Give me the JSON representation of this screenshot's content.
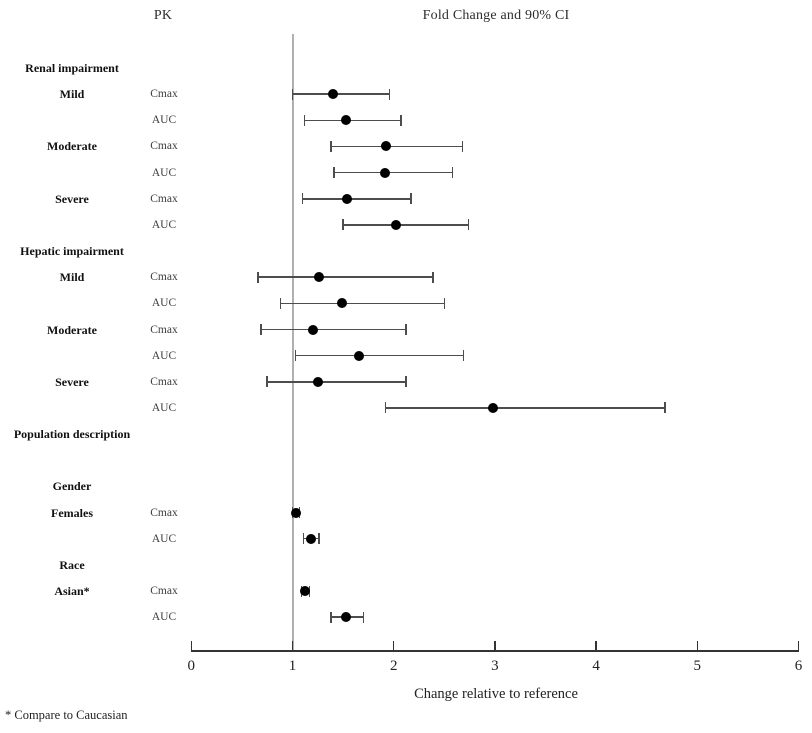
{
  "header": {
    "pk_label": "PK",
    "ci_label": "Fold Change and 90% CI"
  },
  "axis": {
    "xlabel": "Change relative to reference",
    "ticks": [
      "0",
      "1",
      "2",
      "3",
      "4",
      "5",
      "6"
    ]
  },
  "footnote": "* Compare to Caucasian",
  "colors": {
    "marker": "#000000",
    "ci": "#4d4d4d",
    "reference_line": "#b0b0b0",
    "axis": "#333333"
  },
  "chart_data": {
    "type": "scatter",
    "subtype": "forest-plot",
    "title": "Fold Change and 90% CI",
    "xlabel": "Change relative to reference",
    "xlim": [
      0,
      6
    ],
    "x_ticks": [
      0,
      1,
      2,
      3,
      4,
      5,
      6
    ],
    "reference_x": 1,
    "ci_level": "90%",
    "grid": false,
    "legend": false,
    "rows": [
      {
        "kind": "section",
        "label": "Renal impairment"
      },
      {
        "kind": "data",
        "label": "Mild",
        "param": "Cmax",
        "value": 1.4,
        "lo": 1.0,
        "hi": 1.96
      },
      {
        "kind": "data",
        "label": "",
        "param": "AUC",
        "value": 1.53,
        "lo": 1.12,
        "hi": 2.07
      },
      {
        "kind": "data",
        "label": "Moderate",
        "param": "Cmax",
        "value": 1.92,
        "lo": 1.38,
        "hi": 2.68
      },
      {
        "kind": "data",
        "label": "",
        "param": "AUC",
        "value": 1.91,
        "lo": 1.41,
        "hi": 2.58
      },
      {
        "kind": "data",
        "label": "Severe",
        "param": "Cmax",
        "value": 1.54,
        "lo": 1.1,
        "hi": 2.17
      },
      {
        "kind": "data",
        "label": "",
        "param": "AUC",
        "value": 2.02,
        "lo": 1.5,
        "hi": 2.74
      },
      {
        "kind": "section",
        "label": "Hepatic impairment"
      },
      {
        "kind": "data",
        "label": "Mild",
        "param": "Cmax",
        "value": 1.26,
        "lo": 0.66,
        "hi": 2.39
      },
      {
        "kind": "data",
        "label": "",
        "param": "AUC",
        "value": 1.49,
        "lo": 0.88,
        "hi": 2.5
      },
      {
        "kind": "data",
        "label": "Moderate",
        "param": "Cmax",
        "value": 1.2,
        "lo": 0.69,
        "hi": 2.12
      },
      {
        "kind": "data",
        "label": "",
        "param": "AUC",
        "value": 1.66,
        "lo": 1.03,
        "hi": 2.69
      },
      {
        "kind": "data",
        "label": "Severe",
        "param": "Cmax",
        "value": 1.25,
        "lo": 0.75,
        "hi": 2.12
      },
      {
        "kind": "data",
        "label": "",
        "param": "AUC",
        "value": 2.98,
        "lo": 1.92,
        "hi": 4.68
      },
      {
        "kind": "section",
        "label": "Population description"
      },
      {
        "kind": "spacer"
      },
      {
        "kind": "section",
        "label": "Gender"
      },
      {
        "kind": "data",
        "label": "Females",
        "param": "Cmax",
        "value": 1.03,
        "lo": 1.0,
        "hi": 1.07
      },
      {
        "kind": "data",
        "label": "",
        "param": "AUC",
        "value": 1.18,
        "lo": 1.11,
        "hi": 1.26
      },
      {
        "kind": "section",
        "label": "Race"
      },
      {
        "kind": "data",
        "label": "Asian*",
        "param": "Cmax",
        "value": 1.12,
        "lo": 1.09,
        "hi": 1.17
      },
      {
        "kind": "data",
        "label": "",
        "param": "AUC",
        "value": 1.53,
        "lo": 1.38,
        "hi": 1.7
      }
    ]
  }
}
